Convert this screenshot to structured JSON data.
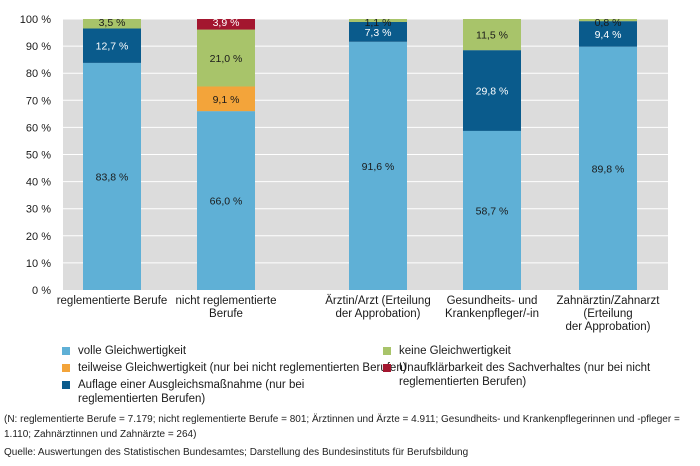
{
  "chart_data": {
    "type": "bar",
    "stacked": true,
    "categories": [
      "reglementierte Berufe",
      "nicht reglementierte Berufe",
      "Ärztin/Arzt (Erteilung der Approbation)",
      "Gesundheits- und Krankenpfleger/-in",
      "Zahnärztin/Zahnarzt (Erteilung der Approbation)"
    ],
    "category_lines": [
      [
        "reglementierte Berufe"
      ],
      [
        "nicht reglementierte",
        "Berufe"
      ],
      [
        "Ärztin/Arzt (Erteilung",
        "der Approbation)"
      ],
      [
        "Gesundheits- und",
        "Krankenpfleger/-in"
      ],
      [
        "Zahnärztin/Zahnarzt",
        "(Erteilung",
        "der Approbation)"
      ]
    ],
    "series": [
      {
        "name": "volle Gleichwertigkeit",
        "color": "#5fb0d6",
        "values": [
          83.8,
          66.0,
          91.6,
          58.7,
          89.8
        ],
        "labels": [
          "83,8 %",
          "66,0 %",
          "91,6 %",
          "58,7 %",
          "89,8 %"
        ]
      },
      {
        "name": "teilweise Gleichwertigkeit (nur bei nicht reglementierten Berufen)",
        "color": "#f3a43a",
        "values": [
          0,
          9.1,
          0,
          0,
          0
        ],
        "labels": [
          "",
          "9,1 %",
          "",
          "",
          ""
        ]
      },
      {
        "name": "Auflage einer Ausgleichsmaßnahme (nur bei reglementierten Berufen)",
        "color": "#0a5b8c",
        "values": [
          12.7,
          0,
          7.3,
          29.8,
          9.4
        ],
        "labels": [
          "12,7 %",
          "",
          "7,3 %",
          "29,8 %",
          "9,4 %"
        ]
      },
      {
        "name": "keine Gleichwertigkeit",
        "color": "#a8c46a",
        "values": [
          3.5,
          21.0,
          1.1,
          11.5,
          0.8
        ],
        "labels": [
          "3,5 %",
          "21,0 %",
          "1,1 %",
          "11,5 %",
          "0,8 %"
        ]
      },
      {
        "name": "Unaufklärbarkeit des Sachverhaltes (nur bei nicht reglementierten Berufen)",
        "color": "#a3162f",
        "values": [
          0,
          3.9,
          0,
          0,
          0
        ],
        "labels": [
          "",
          "3,9 %",
          "",
          "",
          ""
        ]
      }
    ],
    "ylim": [
      0,
      100
    ],
    "yticks": [
      "0 %",
      "10 %",
      "20 %",
      "30 %",
      "40 %",
      "50 %",
      "60 %",
      "70 %",
      "80 %",
      "90 %",
      "100 %"
    ],
    "grid": true,
    "xlabel": "",
    "ylabel": "",
    "title": ""
  },
  "legend": {
    "items": [
      {
        "label": "volle Gleichwertigkeit",
        "color": "#5fb0d6"
      },
      {
        "label": "keine Gleichwertigkeit",
        "color": "#a8c46a"
      },
      {
        "label": "teilweise Gleichwertigkeit (nur bei nicht reglementierten Berufen)",
        "color": "#f3a43a"
      },
      {
        "label": "Unaufklärbarkeit des Sachverhaltes (nur bei nicht reglementierten Berufen)",
        "color": "#a3162f"
      },
      {
        "label": "Auflage einer Ausgleichsmaßnahme (nur bei reglementierten Berufen)",
        "color": "#0a5b8c"
      }
    ]
  },
  "footnote": "(N: reglementierte Berufe = 7.179; nicht reglementierte Berufe = 801; Ärztinnen und Ärzte = 4.911; Gesundheits- und Krankenpflegerinnen und -pfleger = 1.110; Zahnärztinnen und Zahnärzte = 264)",
  "source": "Quelle: Auswertungen des Statistischen Bundesamtes; Darstellung des Bundesinstituts für Berufsbildung"
}
